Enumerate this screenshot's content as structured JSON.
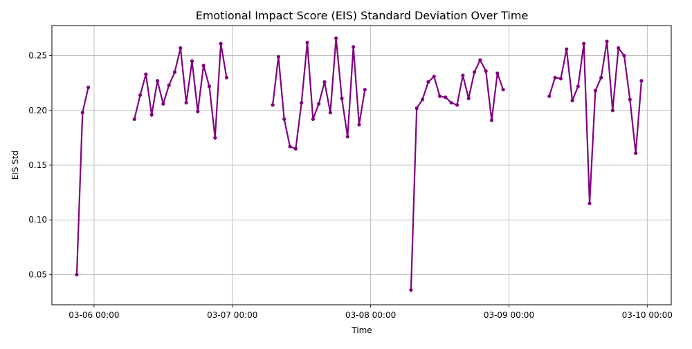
{
  "chart_data": {
    "type": "line",
    "title": "Emotional Impact Score (EIS) Standard Deviation Over Time",
    "xlabel": "Time",
    "ylabel": "EIS Std",
    "x_ticks": [
      "03-06 00:00",
      "03-07 00:00",
      "03-08 00:00",
      "03-09 00:00",
      "03-10 00:00"
    ],
    "y_ticks": [
      "0.05",
      "0.10",
      "0.15",
      "0.20",
      "0.25"
    ],
    "xlim": [
      "03-05 16:41",
      "03-10 04:10"
    ],
    "ylim": [
      0.0225,
      0.2775
    ],
    "grid": true,
    "color": "#800080",
    "series": [
      {
        "segments": [
          [
            [
              "03-05 21:00",
              0.05
            ],
            [
              "03-05 22:00",
              0.198
            ],
            [
              "03-05 23:00",
              0.221
            ]
          ],
          [
            [
              "03-06 07:00",
              0.192
            ],
            [
              "03-06 08:00",
              0.214
            ],
            [
              "03-06 09:00",
              0.233
            ],
            [
              "03-06 10:00",
              0.196
            ],
            [
              "03-06 11:00",
              0.227
            ],
            [
              "03-06 12:00",
              0.206
            ],
            [
              "03-06 13:00",
              0.223
            ],
            [
              "03-06 14:00",
              0.235
            ],
            [
              "03-06 15:00",
              0.257
            ],
            [
              "03-06 16:00",
              0.207
            ],
            [
              "03-06 17:00",
              0.245
            ],
            [
              "03-06 18:00",
              0.199
            ],
            [
              "03-06 19:00",
              0.241
            ],
            [
              "03-06 20:00",
              0.222
            ],
            [
              "03-06 21:00",
              0.175
            ],
            [
              "03-06 22:00",
              0.261
            ],
            [
              "03-06 23:00",
              0.23
            ]
          ],
          [
            [
              "03-07 07:00",
              0.205
            ],
            [
              "03-07 08:00",
              0.249
            ],
            [
              "03-07 09:00",
              0.192
            ],
            [
              "03-07 10:00",
              0.167
            ],
            [
              "03-07 11:00",
              0.165
            ],
            [
              "03-07 12:00",
              0.207
            ],
            [
              "03-07 13:00",
              0.262
            ],
            [
              "03-07 14:00",
              0.192
            ],
            [
              "03-07 15:00",
              0.206
            ],
            [
              "03-07 16:00",
              0.226
            ],
            [
              "03-07 17:00",
              0.198
            ],
            [
              "03-07 18:00",
              0.266
            ],
            [
              "03-07 19:00",
              0.211
            ],
            [
              "03-07 20:00",
              0.176
            ],
            [
              "03-07 21:00",
              0.258
            ],
            [
              "03-07 22:00",
              0.187
            ],
            [
              "03-07 23:00",
              0.219
            ]
          ],
          [
            [
              "03-08 07:00",
              0.036
            ],
            [
              "03-08 08:00",
              0.202
            ],
            [
              "03-08 09:00",
              0.21
            ],
            [
              "03-08 10:00",
              0.226
            ],
            [
              "03-08 11:00",
              0.231
            ],
            [
              "03-08 12:00",
              0.213
            ],
            [
              "03-08 13:00",
              0.212
            ],
            [
              "03-08 14:00",
              0.207
            ],
            [
              "03-08 15:00",
              0.205
            ],
            [
              "03-08 16:00",
              0.232
            ],
            [
              "03-08 17:00",
              0.211
            ],
            [
              "03-08 18:00",
              0.235
            ],
            [
              "03-08 19:00",
              0.246
            ],
            [
              "03-08 20:00",
              0.236
            ],
            [
              "03-08 21:00",
              0.191
            ],
            [
              "03-08 22:00",
              0.234
            ],
            [
              "03-08 23:00",
              0.219
            ]
          ],
          [
            [
              "03-09 07:00",
              0.213
            ],
            [
              "03-09 08:00",
              0.23
            ],
            [
              "03-09 09:00",
              0.229
            ],
            [
              "03-09 10:00",
              0.256
            ],
            [
              "03-09 11:00",
              0.209
            ],
            [
              "03-09 12:00",
              0.222
            ],
            [
              "03-09 13:00",
              0.261
            ],
            [
              "03-09 14:00",
              0.115
            ],
            [
              "03-09 15:00",
              0.218
            ],
            [
              "03-09 16:00",
              0.23
            ],
            [
              "03-09 17:00",
              0.263
            ],
            [
              "03-09 18:00",
              0.2
            ],
            [
              "03-09 19:00",
              0.257
            ],
            [
              "03-09 20:00",
              0.25
            ],
            [
              "03-09 21:00",
              0.21
            ],
            [
              "03-09 22:00",
              0.161
            ],
            [
              "03-09 23:00",
              0.227
            ]
          ]
        ]
      }
    ]
  }
}
